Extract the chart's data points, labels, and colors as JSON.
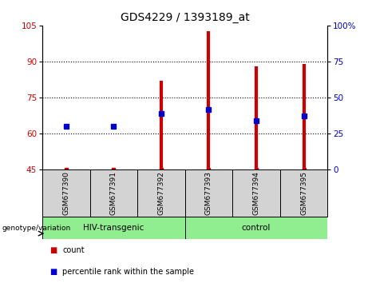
{
  "title": "GDS4229 / 1393189_at",
  "samples": [
    "GSM677390",
    "GSM677391",
    "GSM677392",
    "GSM677393",
    "GSM677394",
    "GSM677395"
  ],
  "count_values": [
    45.5,
    45.4,
    82.0,
    102.5,
    88.0,
    89.0
  ],
  "count_base": 45,
  "percentile_left_values": [
    63,
    63,
    68.5,
    70,
    65.5,
    67.5
  ],
  "left_ylim": [
    45,
    105
  ],
  "right_ylim": [
    0,
    100
  ],
  "left_yticks": [
    45,
    60,
    75,
    90,
    105
  ],
  "right_yticks": [
    0,
    25,
    50,
    75,
    100
  ],
  "right_yticklabels": [
    "0",
    "25",
    "50",
    "75",
    "100%"
  ],
  "bar_color": "#cc0000",
  "dot_color": "#0000cc",
  "group1_label": "HIV-transgenic",
  "group2_label": "control",
  "group1_indices": [
    0,
    1,
    2
  ],
  "group2_indices": [
    3,
    4,
    5
  ],
  "group_bg_color": "#90EE90",
  "sample_bg_color": "#d3d3d3",
  "legend_count_label": "count",
  "legend_pct_label": "percentile rank within the sample",
  "genotype_label": "genotype/variation",
  "title_fontsize": 10,
  "tick_fontsize": 7.5,
  "label_fontsize": 8
}
